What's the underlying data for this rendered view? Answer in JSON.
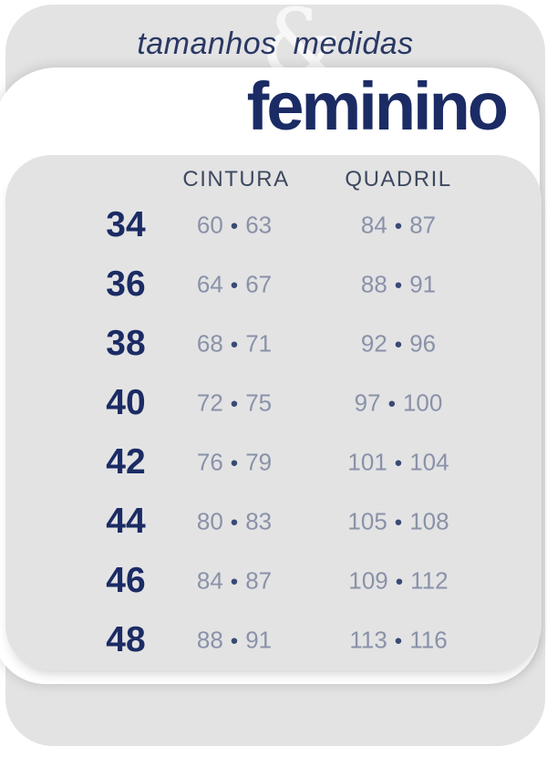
{
  "header": {
    "word_left": "tamanhos",
    "ampersand": "&",
    "word_right": "medidas"
  },
  "section": {
    "title": "feminino"
  },
  "chart_data": {
    "type": "table",
    "title": "tamanhos & medidas",
    "subtitle": "feminino",
    "columns": [
      "CINTURA",
      "QUADRIL"
    ],
    "separator": "•",
    "rows": [
      {
        "size": "34",
        "cintura": [
          "60",
          "63"
        ],
        "quadril": [
          "84",
          "87"
        ]
      },
      {
        "size": "36",
        "cintura": [
          "64",
          "67"
        ],
        "quadril": [
          "88",
          "91"
        ]
      },
      {
        "size": "38",
        "cintura": [
          "68",
          "71"
        ],
        "quadril": [
          "92",
          "96"
        ]
      },
      {
        "size": "40",
        "cintura": [
          "72",
          "75"
        ],
        "quadril": [
          "97",
          "100"
        ]
      },
      {
        "size": "42",
        "cintura": [
          "76",
          "79"
        ],
        "quadril": [
          "101",
          "104"
        ]
      },
      {
        "size": "44",
        "cintura": [
          "80",
          "83"
        ],
        "quadril": [
          "105",
          "108"
        ]
      },
      {
        "size": "46",
        "cintura": [
          "84",
          "87"
        ],
        "quadril": [
          "109",
          "112"
        ]
      },
      {
        "size": "48",
        "cintura": [
          "88",
          "91"
        ],
        "quadril": [
          "113",
          "116"
        ]
      }
    ]
  },
  "colors": {
    "card_gray": "#e3e3e4",
    "navy": "#1b2b64",
    "header_italic_navy": "#2a3863",
    "column_header_slate": "#3d495f",
    "value_text": "#8a92a8",
    "value_dot": "#394a74",
    "ampersand_white": "#f7f7f7",
    "page_white": "#ffffff"
  }
}
